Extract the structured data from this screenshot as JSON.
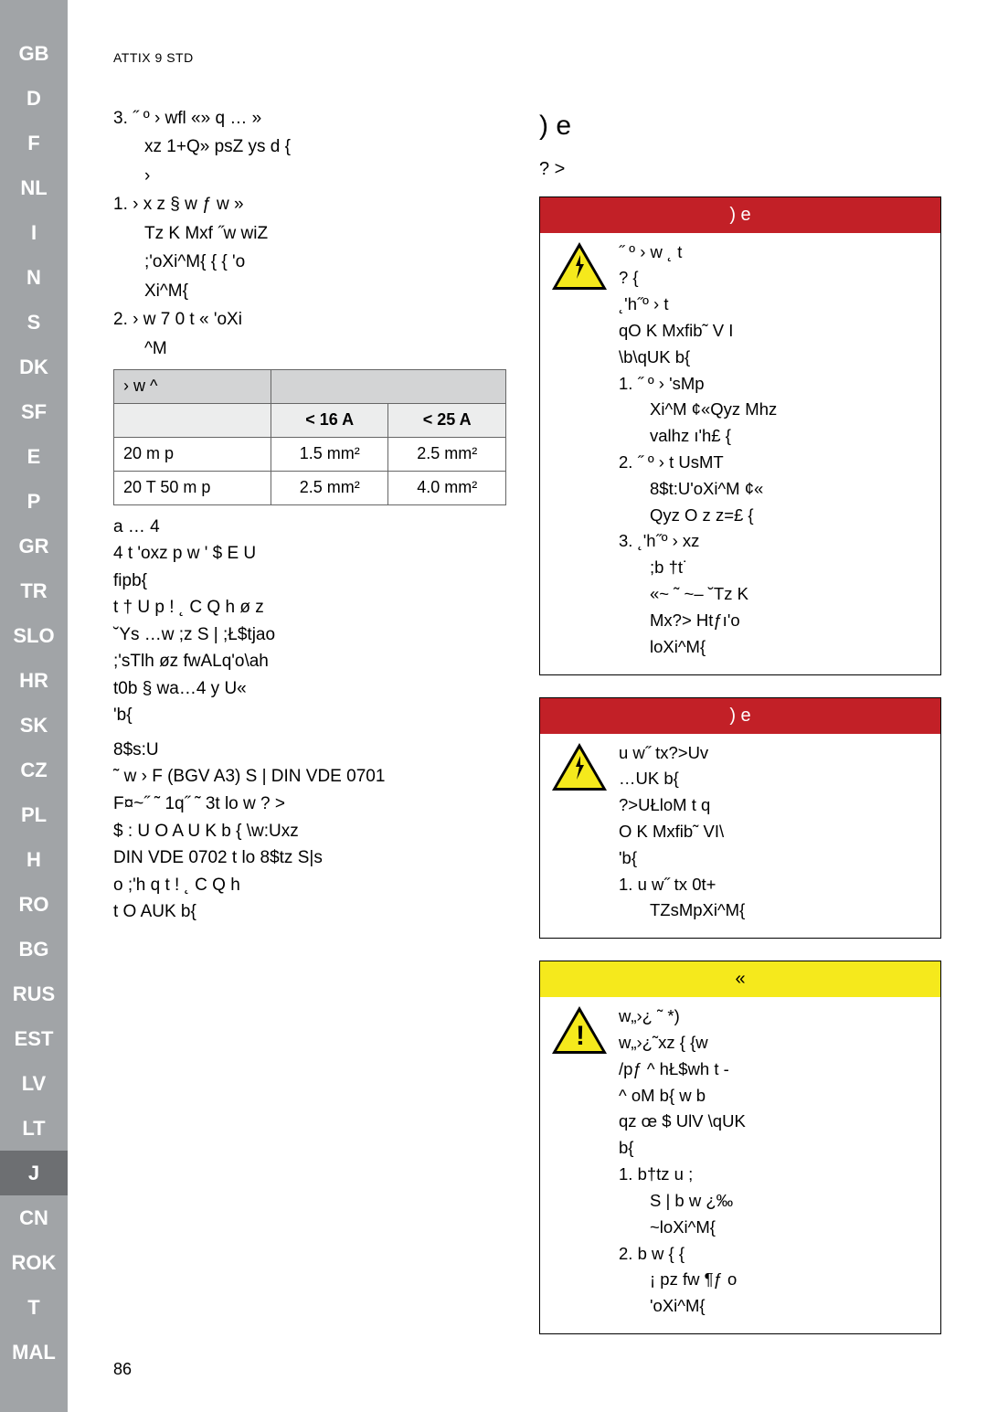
{
  "header": "ATTIX 9 STD",
  "pageNumber": "86",
  "sidebar": {
    "items": [
      "GB",
      "D",
      "F",
      "NL",
      "I",
      "N",
      "S",
      "DK",
      "SF",
      "E",
      "P",
      "GR",
      "TR",
      "SLO",
      "HR",
      "SK",
      "CZ",
      "PL",
      "H",
      "RO",
      "BG",
      "RUS",
      "EST",
      "LV",
      "LT",
      "J",
      "CN",
      "ROK",
      "T",
      "MAL"
    ],
    "activeIndex": 25
  },
  "leftColumn": {
    "item3a": "3. ˝ º › wfl «» q … »",
    "item3b": "xz 1+Q» psZ ys d {",
    "item3c": "›",
    "item1a": "1. › x z § w ƒ w »",
    "item1b": "Tz K Mxf ˝w wiZ",
    "item1c": ";'oXi^M{ { { 'o",
    "item1d": "Xi^M{",
    "item2a": "2. › w 7 0 t « 'oXi",
    "item2b": "^M",
    "table": {
      "hdr": "› w ^",
      "col1": "< 16 A",
      "col2": "< 25 A",
      "r1c0": "20 m p",
      "r1c1": "1.5 mm²",
      "r1c2": "2.5 mm²",
      "r2c0": "20 T 50 m p",
      "r2c1": "2.5 mm²",
      "r2c2": "4.0 mm²"
    },
    "para1a": "a … 4",
    "para1b": "4 t 'oxz p w ' $ E U",
    "para1c": "fipb{",
    "para1d": " t † U p ! ˛ C Q h ø z",
    "para1e": "˘Ys …w ;z S | ;Ł$tjao",
    "para1f": " ;'sTlh øz fwALq'o\\ah",
    "para1g": " t0b § wa…4 y U«",
    "para1h": "'b{",
    "para2a": " 8$s:U",
    "para2b": "˜ w › F (BGV A3) S | DIN VDE 0701",
    "para2c": "F¤~˝ ˜ 1q˝ ˜ 3t lo w ? >",
    "para2d": " $ : U O A U K b { \\w:Uxz",
    "para2e": "DIN VDE 0702 t lo 8$tz S|s",
    "para2f": "o ;'h q t ! ˛ C Q h",
    "para2g": "t O AUK b{"
  },
  "rightColumn": {
    "title": ") e",
    "subtitle": "? >",
    "box1": {
      "header": ") e",
      "l1": "˝ º › w ˛ t",
      "l2": "? {",
      "l3": " ˛'h˝º › t",
      "l4": "qO K Mxfib˜ V I",
      "l5": "\\b\\qUK b{",
      "l6": "1. ˝ º › 'sMp",
      "l7": "Xi^M ¢«Qyz Mhz",
      "l8": "valhz ı'h£ {",
      "l9": "2. ˝ º › t UsMT",
      "l10": "8$t:U'oXi^M ¢«",
      "l11": "Qyz O z z=£ {",
      "l12": "3. ˛'h˝º › xz",
      "l13": ";b †t˙",
      "l14": "«~ ˜ ~– ˘Tz K",
      "l15": "Mx?> Htƒı'o",
      "l16": "loXi^M{"
    },
    "box2": {
      "header": ") e",
      "l1": "u w˝ tx?>Uv",
      "l2": "…UK b{",
      "l3": "?>UŁloM t q",
      "l4": " O K Mxfib˜ VI\\",
      "l5": "'b{",
      "l6": "1. u w˝ tx 0t+",
      "l7": "TZsMpXi^M{"
    },
    "box3": {
      "header": "«",
      "l1": "w„›¿ ˜ *)",
      "l2": " w„›¿˜xz { {w",
      "l3": "/pƒ ^ hŁ$wh t -",
      "l4": "^  oM b{ w b",
      "l5": "qz œ $ UlV \\qUK",
      "l6": "b{",
      "l7": "1. b†tz u ;",
      "l8": "S | b w ¿‰",
      "l9": "~loXi^M{",
      "l10": "2. b w { {",
      "l11": "¡ pz fw ¶ƒ o",
      "l12": "'oXi^M{"
    }
  }
}
